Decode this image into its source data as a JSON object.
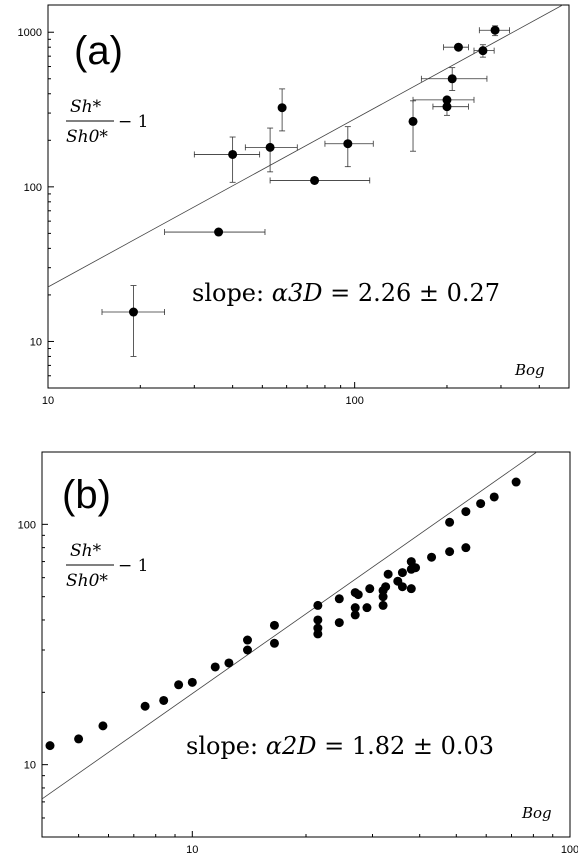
{
  "chart_data": [
    {
      "type": "scatter",
      "panel_label": "(a)",
      "xscale": "log",
      "yscale": "log",
      "xlim": [
        10,
        500
      ],
      "ylim": [
        5,
        1500
      ],
      "x_ticks": [
        "10",
        "100"
      ],
      "y_ticks": [
        "10",
        "100",
        "1000"
      ],
      "ylabel": {
        "num": "Sh*",
        "den": "Sh0*",
        "suffix": "− 1"
      },
      "xlabel": "Bog",
      "annotation": {
        "prefix": "slope: ",
        "symbol": "α3D",
        "value": " = 2.26 ± 0.27"
      },
      "fit_line": [
        [
          10,
          22.5
        ],
        [
          500,
          1580
        ]
      ],
      "points": [
        {
          "x": 19,
          "y": 15.5,
          "xerr": [
            15,
            24
          ],
          "yerr": [
            8,
            23
          ]
        },
        {
          "x": 36,
          "y": 51,
          "xerr": [
            24,
            51
          ],
          "yerr": [
            51,
            51
          ]
        },
        {
          "x": 40,
          "y": 162,
          "xerr": [
            30,
            49
          ],
          "yerr": [
            107,
            210
          ]
        },
        {
          "x": 53,
          "y": 180,
          "xerr": [
            44,
            65
          ],
          "yerr": [
            125,
            240
          ]
        },
        {
          "x": 58,
          "y": 325,
          "xerr": [
            58,
            58
          ],
          "yerr": [
            230,
            430
          ]
        },
        {
          "x": 74,
          "y": 110,
          "xerr": [
            53,
            112
          ],
          "yerr": [
            110,
            110
          ]
        },
        {
          "x": 95,
          "y": 190,
          "xerr": [
            80,
            115
          ],
          "yerr": [
            135,
            245
          ]
        },
        {
          "x": 155,
          "y": 265,
          "xerr": [
            155,
            155
          ],
          "yerr": [
            170,
            360
          ]
        },
        {
          "x": 200,
          "y": 330,
          "xerr": [
            180,
            235
          ],
          "yerr": [
            290,
            375
          ]
        },
        {
          "x": 200,
          "y": 365,
          "xerr": [
            155,
            245
          ],
          "yerr": [
            365,
            365
          ]
        },
        {
          "x": 208,
          "y": 500,
          "xerr": [
            165,
            270
          ],
          "yerr": [
            420,
            590
          ]
        },
        {
          "x": 218,
          "y": 800,
          "xerr": [
            195,
            235
          ],
          "yerr": [
            800,
            800
          ]
        },
        {
          "x": 262,
          "y": 760,
          "xerr": [
            245,
            285
          ],
          "yerr": [
            690,
            830
          ]
        },
        {
          "x": 287,
          "y": 1030,
          "xerr": [
            255,
            320
          ],
          "yerr": [
            950,
            1100
          ]
        }
      ]
    },
    {
      "type": "scatter",
      "panel_label": "(b)",
      "xscale": "log",
      "yscale": "log",
      "xlim": [
        4,
        100
      ],
      "ylim": [
        5,
        200
      ],
      "x_ticks": [
        "10",
        "100"
      ],
      "y_ticks": [
        "10",
        "100"
      ],
      "ylabel": {
        "num": "Sh*",
        "den": "Sh0*",
        "suffix": "− 1"
      },
      "xlabel": "Bog",
      "annotation": {
        "prefix": "slope: ",
        "symbol": "α2D",
        "value": " = 1.82 ± 0.03"
      },
      "fit_line": [
        [
          4,
          7.2
        ],
        [
          100,
          250
        ]
      ],
      "points": [
        {
          "x": 4.2,
          "y": 12
        },
        {
          "x": 5.0,
          "y": 12.8
        },
        {
          "x": 5.8,
          "y": 14.5
        },
        {
          "x": 7.5,
          "y": 17.5
        },
        {
          "x": 8.4,
          "y": 18.5
        },
        {
          "x": 9.2,
          "y": 21.5
        },
        {
          "x": 10.0,
          "y": 22
        },
        {
          "x": 11.5,
          "y": 25.5
        },
        {
          "x": 12.5,
          "y": 26.5
        },
        {
          "x": 14.0,
          "y": 30
        },
        {
          "x": 14.0,
          "y": 33
        },
        {
          "x": 16.5,
          "y": 32
        },
        {
          "x": 16.5,
          "y": 38
        },
        {
          "x": 21.5,
          "y": 35
        },
        {
          "x": 21.5,
          "y": 37
        },
        {
          "x": 21.5,
          "y": 40
        },
        {
          "x": 21.5,
          "y": 46
        },
        {
          "x": 24.5,
          "y": 39
        },
        {
          "x": 24.5,
          "y": 49
        },
        {
          "x": 27,
          "y": 42
        },
        {
          "x": 27,
          "y": 45
        },
        {
          "x": 27,
          "y": 52
        },
        {
          "x": 27.5,
          "y": 51
        },
        {
          "x": 29,
          "y": 45
        },
        {
          "x": 29.5,
          "y": 54
        },
        {
          "x": 32,
          "y": 46
        },
        {
          "x": 32,
          "y": 50
        },
        {
          "x": 32,
          "y": 53
        },
        {
          "x": 32.5,
          "y": 55
        },
        {
          "x": 33,
          "y": 62
        },
        {
          "x": 35,
          "y": 58
        },
        {
          "x": 36,
          "y": 55
        },
        {
          "x": 36,
          "y": 63
        },
        {
          "x": 38,
          "y": 54
        },
        {
          "x": 38,
          "y": 65
        },
        {
          "x": 38,
          "y": 70
        },
        {
          "x": 39,
          "y": 66
        },
        {
          "x": 43,
          "y": 73
        },
        {
          "x": 48,
          "y": 77
        },
        {
          "x": 48,
          "y": 102
        },
        {
          "x": 53,
          "y": 80
        },
        {
          "x": 53,
          "y": 113
        },
        {
          "x": 58,
          "y": 122
        },
        {
          "x": 63,
          "y": 130
        },
        {
          "x": 72,
          "y": 150
        }
      ]
    }
  ]
}
